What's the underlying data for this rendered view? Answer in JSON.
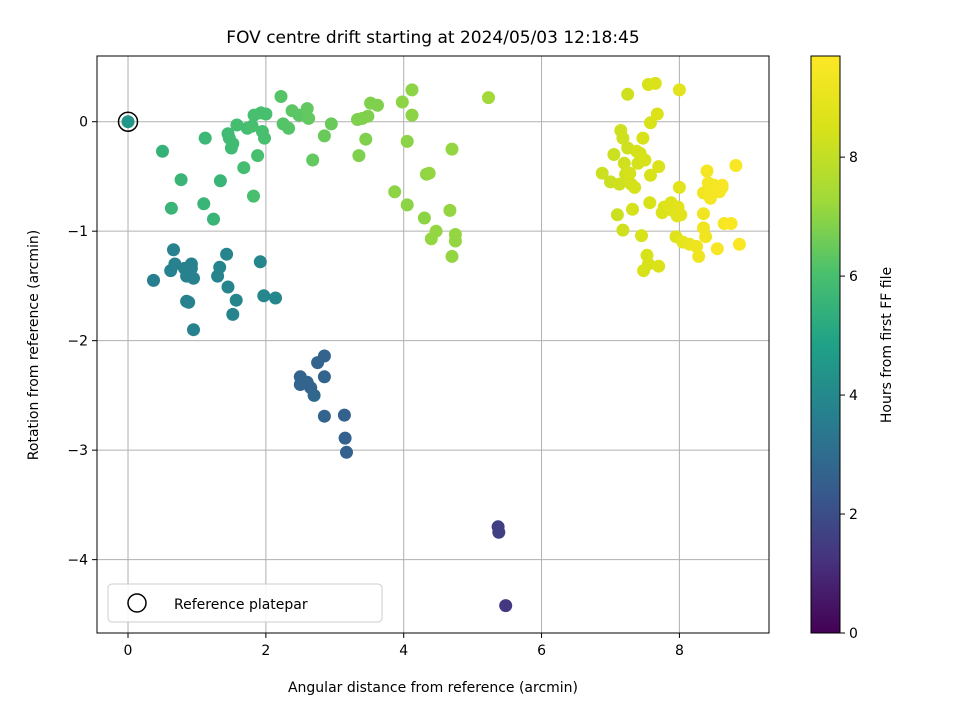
{
  "chart_data": {
    "type": "scatter",
    "title": "FOV centre drift starting at 2024/05/03 12:18:45",
    "xlabel": "Angular distance from reference (arcmin)",
    "ylabel": "Rotation from reference (arcmin)",
    "xlim": [
      -0.45,
      9.3
    ],
    "ylim": [
      -4.67,
      0.6
    ],
    "xticks": [
      0,
      2,
      4,
      6,
      8
    ],
    "yticks": [
      -4,
      -3,
      -2,
      -1,
      0
    ],
    "xtick_labels": [
      "0",
      "2",
      "4",
      "6",
      "8"
    ],
    "ytick_labels": [
      "−4",
      "−3",
      "−2",
      "−1",
      "0"
    ],
    "grid": true,
    "legend": {
      "placement": "lower-left",
      "entries": [
        {
          "label": "Reference platepar",
          "marker": "open-circle"
        }
      ]
    },
    "reference_point": {
      "x": 0,
      "y": 0
    },
    "colorbar": {
      "label": "Hours from first FF file",
      "colormap": "viridis",
      "range": [
        0,
        9.7
      ],
      "ticks": [
        0,
        2,
        4,
        6,
        8
      ],
      "tick_labels": [
        "0",
        "2",
        "4",
        "6",
        "8"
      ]
    },
    "points": [
      [
        5.48,
        -4.42,
        1.4
      ],
      [
        5.37,
        -3.7,
        1.6
      ],
      [
        5.38,
        -3.75,
        1.6
      ],
      [
        3.17,
        -3.02,
        2.6
      ],
      [
        3.15,
        -2.89,
        2.6
      ],
      [
        3.14,
        -2.68,
        2.6
      ],
      [
        2.85,
        -2.69,
        2.7
      ],
      [
        2.85,
        -2.33,
        2.7
      ],
      [
        2.85,
        -2.14,
        2.7
      ],
      [
        2.75,
        -2.2,
        2.7
      ],
      [
        2.5,
        -2.33,
        2.7
      ],
      [
        2.5,
        -2.4,
        2.7
      ],
      [
        2.6,
        -2.38,
        2.7
      ],
      [
        2.65,
        -2.43,
        2.7
      ],
      [
        2.7,
        -2.5,
        2.8
      ],
      [
        0.37,
        -1.45,
        3.6
      ],
      [
        0.62,
        -1.36,
        3.7
      ],
      [
        0.68,
        -1.3,
        3.7
      ],
      [
        0.66,
        -1.17,
        3.7
      ],
      [
        0.82,
        -1.34,
        3.7
      ],
      [
        0.85,
        -1.41,
        3.7
      ],
      [
        0.92,
        -1.3,
        3.7
      ],
      [
        0.92,
        -1.34,
        3.7
      ],
      [
        0.95,
        -1.43,
        3.7
      ],
      [
        0.85,
        -1.64,
        3.7
      ],
      [
        0.88,
        -1.65,
        3.7
      ],
      [
        0.95,
        -1.9,
        3.7
      ],
      [
        1.3,
        -1.41,
        3.8
      ],
      [
        1.33,
        -1.33,
        3.8
      ],
      [
        1.43,
        -1.21,
        3.8
      ],
      [
        1.45,
        -1.51,
        3.8
      ],
      [
        1.52,
        -1.76,
        3.8
      ],
      [
        1.57,
        -1.63,
        3.8
      ],
      [
        1.92,
        -1.28,
        3.9
      ],
      [
        1.97,
        -1.59,
        3.9
      ],
      [
        2.14,
        -1.61,
        3.9
      ],
      [
        0.5,
        -0.27,
        5.5
      ],
      [
        0.63,
        -0.79,
        5.6
      ],
      [
        0.77,
        -0.53,
        5.6
      ],
      [
        1.12,
        -0.15,
        5.7
      ],
      [
        1.1,
        -0.75,
        5.6
      ],
      [
        1.24,
        -0.89,
        5.6
      ],
      [
        1.34,
        -0.54,
        5.6
      ],
      [
        1.45,
        -0.11,
        5.8
      ],
      [
        1.47,
        -0.15,
        5.8
      ],
      [
        1.5,
        -0.24,
        5.8
      ],
      [
        1.52,
        -0.2,
        5.8
      ],
      [
        1.58,
        -0.03,
        5.9
      ],
      [
        1.68,
        -0.42,
        5.9
      ],
      [
        1.73,
        -0.06,
        5.9
      ],
      [
        1.8,
        -0.04,
        6.0
      ],
      [
        1.82,
        -0.68,
        6.0
      ],
      [
        1.83,
        0.06,
        6.0
      ],
      [
        1.88,
        -0.31,
        6.0
      ],
      [
        1.93,
        0.08,
        6.0
      ],
      [
        1.95,
        -0.09,
        6.0
      ],
      [
        1.98,
        -0.15,
        6.0
      ],
      [
        2.0,
        0.07,
        6.0
      ],
      [
        2.22,
        0.23,
        6.2
      ],
      [
        2.25,
        -0.02,
        6.2
      ],
      [
        2.33,
        -0.06,
        6.2
      ],
      [
        2.38,
        0.1,
        6.3
      ],
      [
        2.48,
        0.06,
        6.3
      ],
      [
        2.57,
        0.06,
        6.3
      ],
      [
        2.6,
        0.12,
        6.4
      ],
      [
        2.62,
        0.03,
        6.4
      ],
      [
        2.68,
        -0.35,
        6.4
      ],
      [
        2.85,
        -0.13,
        6.5
      ],
      [
        2.95,
        -0.02,
        6.5
      ],
      [
        3.33,
        0.02,
        6.8
      ],
      [
        3.35,
        -0.31,
        6.8
      ],
      [
        3.4,
        0.03,
        6.8
      ],
      [
        3.45,
        -0.16,
        6.8
      ],
      [
        3.48,
        0.05,
        6.8
      ],
      [
        3.52,
        0.17,
        6.8
      ],
      [
        3.62,
        0.15,
        6.8
      ],
      [
        3.87,
        -0.64,
        7.0
      ],
      [
        3.98,
        0.18,
        7.0
      ],
      [
        4.05,
        -0.76,
        7.0
      ],
      [
        4.05,
        -0.18,
        7.0
      ],
      [
        4.12,
        0.29,
        7.0
      ],
      [
        4.12,
        0.06,
        7.0
      ],
      [
        4.3,
        -0.88,
        7.0
      ],
      [
        4.33,
        -0.48,
        7.0
      ],
      [
        4.37,
        -0.47,
        7.1
      ],
      [
        4.4,
        -1.07,
        7.1
      ],
      [
        4.47,
        -1.0,
        7.1
      ],
      [
        4.67,
        -0.81,
        7.1
      ],
      [
        4.7,
        -0.25,
        7.1
      ],
      [
        4.7,
        -1.23,
        7.1
      ],
      [
        4.75,
        -1.03,
        7.1
      ],
      [
        4.75,
        -1.09,
        7.1
      ],
      [
        5.23,
        0.22,
        7.3
      ],
      [
        6.88,
        -0.47,
        8.2
      ],
      [
        7.0,
        -0.55,
        8.2
      ],
      [
        7.05,
        -0.3,
        8.2
      ],
      [
        7.1,
        -0.85,
        8.2
      ],
      [
        7.13,
        -0.57,
        8.3
      ],
      [
        7.15,
        -0.08,
        8.3
      ],
      [
        7.18,
        -0.15,
        8.3
      ],
      [
        7.18,
        -0.99,
        8.3
      ],
      [
        7.2,
        -0.38,
        8.3
      ],
      [
        7.22,
        -0.48,
        8.3
      ],
      [
        7.25,
        -0.24,
        8.3
      ],
      [
        7.25,
        0.25,
        8.3
      ],
      [
        7.28,
        -0.47,
        8.4
      ],
      [
        7.3,
        -0.57,
        8.4
      ],
      [
        7.32,
        -0.8,
        8.4
      ],
      [
        7.35,
        -0.6,
        8.4
      ],
      [
        7.38,
        -0.27,
        8.4
      ],
      [
        7.4,
        -0.38,
        8.4
      ],
      [
        7.43,
        -0.29,
        8.4
      ],
      [
        7.45,
        -1.04,
        8.5
      ],
      [
        7.47,
        -0.15,
        8.5
      ],
      [
        7.48,
        -1.36,
        8.5
      ],
      [
        7.5,
        -0.35,
        8.5
      ],
      [
        7.53,
        -1.22,
        8.5
      ],
      [
        7.55,
        -1.3,
        8.5
      ],
      [
        7.55,
        0.34,
        8.5
      ],
      [
        7.57,
        -0.74,
        8.5
      ],
      [
        7.58,
        -0.49,
        8.5
      ],
      [
        7.58,
        -0.01,
        8.5
      ],
      [
        7.65,
        0.35,
        8.6
      ],
      [
        7.68,
        0.07,
        8.6
      ],
      [
        7.7,
        -1.32,
        8.6
      ],
      [
        7.7,
        -0.41,
        8.6
      ],
      [
        7.75,
        -0.83,
        8.6
      ],
      [
        7.78,
        -0.78,
        8.6
      ],
      [
        7.85,
        -0.77,
        8.7
      ],
      [
        7.88,
        -0.74,
        8.7
      ],
      [
        7.9,
        -0.81,
        8.7
      ],
      [
        7.95,
        -1.05,
        8.7
      ],
      [
        7.97,
        -0.86,
        8.7
      ],
      [
        7.98,
        -0.78,
        8.8
      ],
      [
        8.0,
        0.29,
        8.8
      ],
      [
        8.0,
        -0.6,
        8.8
      ],
      [
        8.02,
        -0.85,
        8.8
      ],
      [
        8.05,
        -1.1,
        8.9
      ],
      [
        8.15,
        -1.12,
        9.1
      ],
      [
        8.25,
        -1.14,
        9.2
      ],
      [
        8.28,
        -1.23,
        9.2
      ],
      [
        8.35,
        -0.65,
        9.3
      ],
      [
        8.35,
        -0.84,
        9.3
      ],
      [
        8.35,
        -0.97,
        9.3
      ],
      [
        8.38,
        -1.05,
        9.3
      ],
      [
        8.4,
        -0.45,
        9.4
      ],
      [
        8.42,
        -0.56,
        9.4
      ],
      [
        8.45,
        -0.7,
        9.4
      ],
      [
        8.47,
        -0.64,
        9.4
      ],
      [
        8.5,
        -0.58,
        9.4
      ],
      [
        8.52,
        -0.6,
        9.4
      ],
      [
        8.55,
        -1.16,
        9.5
      ],
      [
        8.57,
        -0.6,
        9.5
      ],
      [
        8.58,
        -0.64,
        9.5
      ],
      [
        8.62,
        -0.58,
        9.5
      ],
      [
        8.62,
        -0.6,
        9.5
      ],
      [
        8.65,
        -0.93,
        9.5
      ],
      [
        8.75,
        -0.93,
        9.6
      ],
      [
        8.82,
        -0.4,
        9.6
      ],
      [
        8.87,
        -1.12,
        9.6
      ]
    ]
  }
}
